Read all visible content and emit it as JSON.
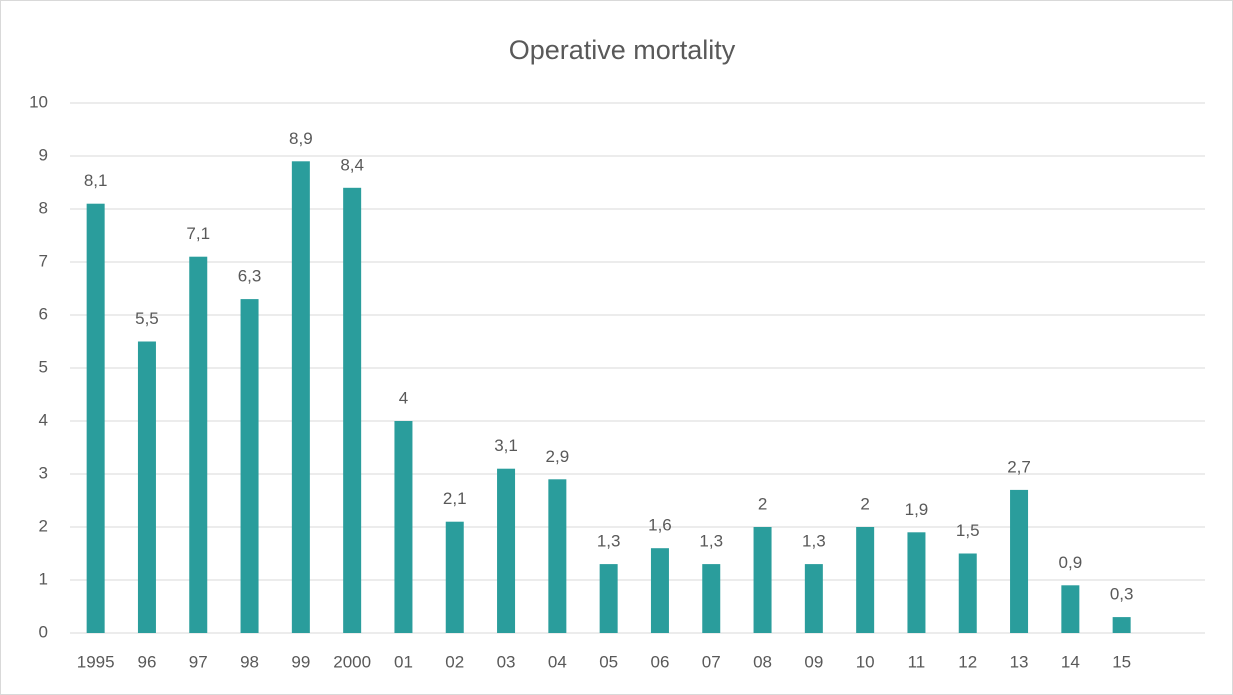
{
  "chart_data": {
    "type": "bar",
    "title": "Operative mortality",
    "categories": [
      "1995",
      "96",
      "97",
      "98",
      "99",
      "2000",
      "01",
      "02",
      "03",
      "04",
      "05",
      "06",
      "07",
      "08",
      "09",
      "10",
      "11",
      "12",
      "13",
      "14",
      "15"
    ],
    "values": [
      8.1,
      5.5,
      7.1,
      6.3,
      8.9,
      8.4,
      4,
      2.1,
      3.1,
      2.9,
      1.3,
      1.6,
      1.3,
      2,
      1.3,
      2,
      1.9,
      1.5,
      2.7,
      0.9,
      0.3
    ],
    "value_labels": [
      "8,1",
      "5,5",
      "7,1",
      "6,3",
      "8,9",
      "8,4",
      "4",
      "2,1",
      "3,1",
      "2,9",
      "1,3",
      "1,6",
      "1,3",
      "2",
      "1,3",
      "2",
      "1,9",
      "1,5",
      "2,7",
      "0,9",
      "0,3"
    ],
    "color": "#2a9d9c",
    "ylim": [
      0,
      10
    ],
    "yticks": [
      0,
      1,
      2,
      3,
      4,
      5,
      6,
      7,
      8,
      9,
      10
    ],
    "grid": true
  }
}
